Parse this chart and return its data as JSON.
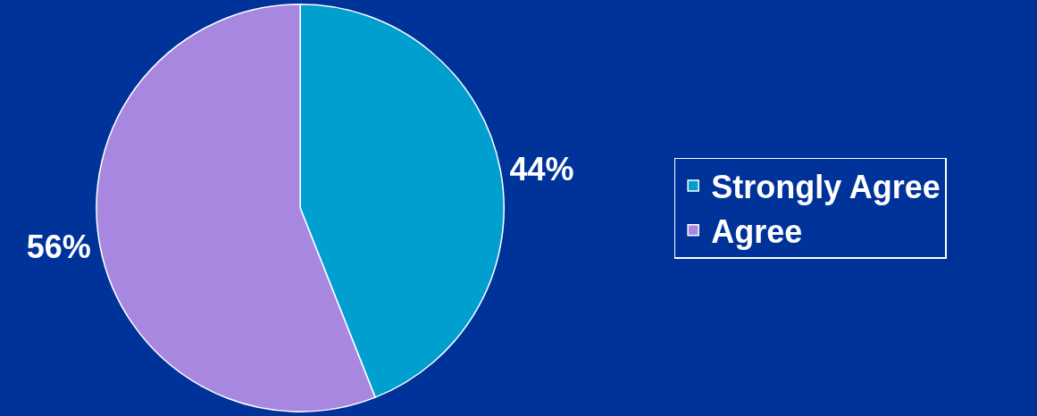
{
  "chart_data": {
    "type": "pie",
    "categories": [
      "Strongly Agree",
      "Agree"
    ],
    "values": [
      44,
      56
    ],
    "value_labels": [
      "44%",
      "56%"
    ],
    "colors": [
      "#009fd0",
      "#a887e0"
    ],
    "legend": "right"
  }
}
